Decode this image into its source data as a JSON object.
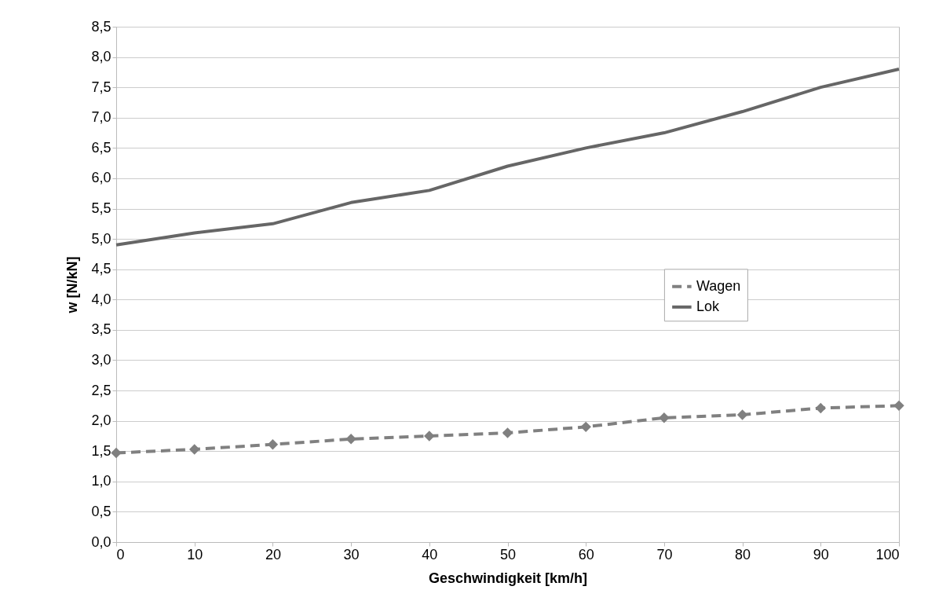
{
  "chart_data": {
    "type": "line",
    "xlabel": "Geschwindigkeit  [km/h]",
    "ylabel": "w [N/kN]",
    "x": [
      0,
      10,
      20,
      30,
      40,
      50,
      60,
      70,
      80,
      90,
      100
    ],
    "series": [
      {
        "name": "Wagen",
        "color": "#808080",
        "marker": "diamond",
        "line_style": "dashed",
        "values": [
          1.47,
          1.53,
          1.61,
          1.7,
          1.75,
          1.8,
          1.9,
          2.05,
          2.1,
          2.21,
          2.25
        ]
      },
      {
        "name": "Lok",
        "color": "#666666",
        "marker": "none",
        "line_style": "solid",
        "values": [
          4.9,
          5.1,
          5.25,
          5.6,
          5.8,
          6.2,
          6.5,
          6.75,
          7.1,
          7.5,
          7.8
        ]
      }
    ],
    "xlim": [
      0,
      100
    ],
    "xticks": [
      0,
      10,
      20,
      30,
      40,
      50,
      60,
      70,
      80,
      90,
      100
    ],
    "ylim": [
      0,
      8.5
    ],
    "yticks": [
      {
        "value": 0,
        "label": "0,0"
      },
      {
        "value": 0.5,
        "label": "0,5"
      },
      {
        "value": 1,
        "label": "1,0"
      },
      {
        "value": 1.5,
        "label": "1,5"
      },
      {
        "value": 2,
        "label": "2,0"
      },
      {
        "value": 2.5,
        "label": "2,5"
      },
      {
        "value": 3,
        "label": "3,0"
      },
      {
        "value": 3.5,
        "label": "3,5"
      },
      {
        "value": 4,
        "label": "4,0"
      },
      {
        "value": 4.5,
        "label": "4,5"
      },
      {
        "value": 5,
        "label": "5,0"
      },
      {
        "value": 5.5,
        "label": "5,5"
      },
      {
        "value": 6,
        "label": "6,0"
      },
      {
        "value": 6.5,
        "label": "6,5"
      },
      {
        "value": 7,
        "label": "7,0"
      },
      {
        "value": 7.5,
        "label": "7,5"
      },
      {
        "value": 8,
        "label": "8,0"
      },
      {
        "value": 8.5,
        "label": "8,5"
      }
    ],
    "grid": "y",
    "legend": "right"
  }
}
